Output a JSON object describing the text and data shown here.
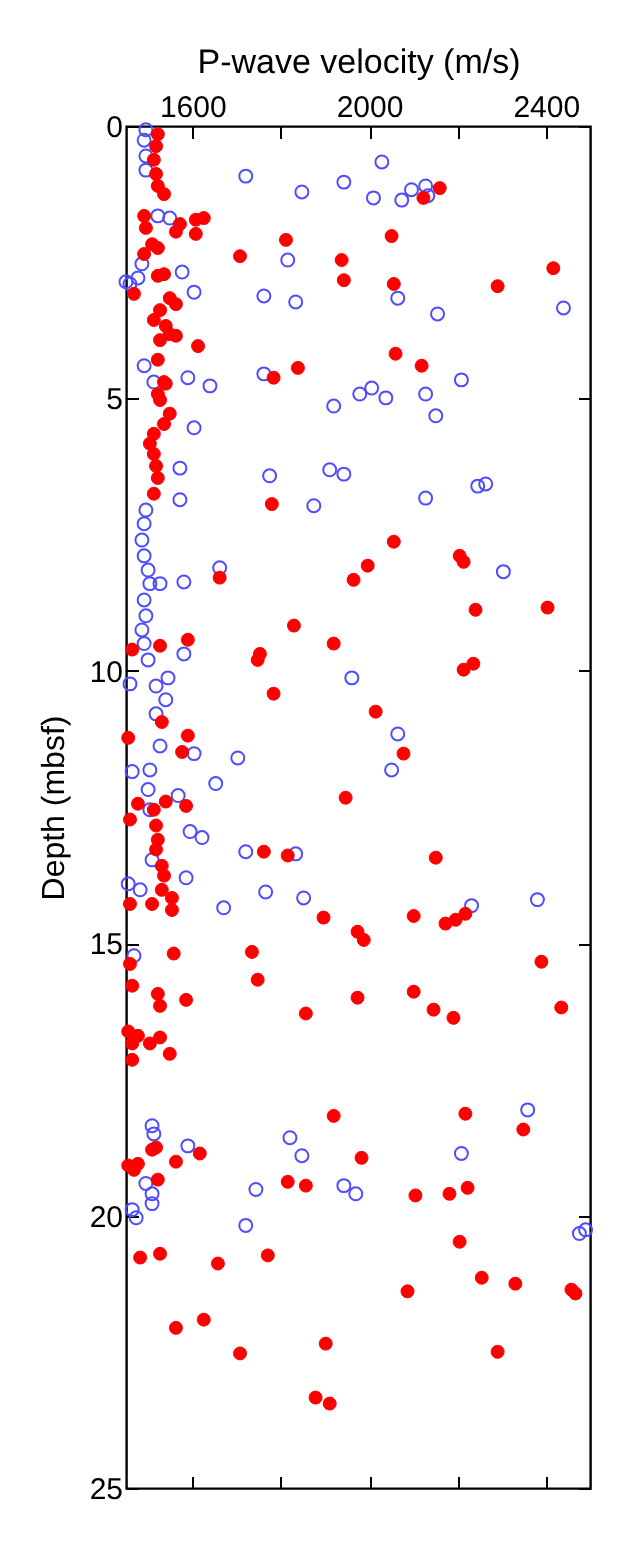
{
  "chart_data": {
    "type": "scatter",
    "xlabel": "P-wave velocity (m/s)",
    "ylabel": "Depth (mbsf)",
    "xlim": [
      1450,
      2500
    ],
    "xticks": [
      1600,
      {
        "value": 1800,
        "label": null
      },
      2000,
      {
        "value": 2200,
        "label": null
      },
      2400
    ],
    "ylim": [
      25,
      0
    ],
    "yticks": [
      0,
      5,
      10,
      15,
      20,
      25
    ],
    "marker": "circle",
    "series": [
      {
        "color": "#4d4dff",
        "x": [
          1495,
          1491,
          1495,
          1495,
          1522,
          1549,
          1486,
          1450,
          1459,
          1477,
          1577,
          1604,
          1491,
          1513,
          1590,
          1640,
          1721,
          1848,
          1943,
          2029,
          2010,
          2074,
          2096,
          2128,
          2133,
          1816,
          1762,
          1834,
          2065,
          2155,
          2440,
          2209,
          1762,
          2006,
          1979,
          2038,
          2128,
          1920,
          2151,
          1604,
          1572,
          1775,
          1911,
          1943,
          2246,
          2264,
          2128,
          1572,
          1875,
          1495,
          1491,
          1486,
          1491,
          1500,
          1504,
          1491,
          1495,
          1486,
          1491,
          1500,
          1662,
          1581,
          1527,
          2304,
          1581,
          1961,
          1545,
          1518,
          1459,
          1540,
          1518,
          2065,
          1604,
          1703,
          1527,
          2051,
          1653,
          1464,
          1504,
          1500,
          1504,
          1568,
          1595,
          1622,
          1721,
          1834,
          1509,
          1586,
          1455,
          1482,
          1766,
          1852,
          1671,
          2232,
          2381,
          1468,
          2359,
          1509,
          1821,
          1513,
          1590,
          1848,
          2209,
          1744,
          1943,
          1970,
          1495,
          1509,
          1509,
          1464,
          1473,
          1721,
          2476,
          2490
        ],
        "values": [
          0.07,
          0.26,
          0.55,
          0.81,
          1.65,
          1.69,
          2.53,
          2.86,
          2.9,
          2.79,
          2.68,
          3.05,
          4.4,
          4.7,
          4.62,
          4.77,
          0.92,
          1.21,
          1.03,
          0.66,
          1.32,
          1.36,
          1.17,
          1.1,
          1.28,
          2.46,
          3.12,
          3.23,
          3.16,
          3.45,
          3.34,
          4.66,
          4.55,
          4.81,
          4.92,
          4.99,
          4.92,
          5.14,
          5.32,
          5.54,
          6.28,
          6.42,
          6.31,
          6.39,
          6.61,
          6.57,
          6.83,
          6.86,
          6.97,
          7.05,
          7.3,
          7.6,
          7.89,
          8.15,
          8.4,
          8.7,
          8.99,
          9.25,
          9.5,
          9.8,
          8.11,
          8.37,
          8.4,
          8.18,
          9.69,
          10.13,
          10.13,
          10.28,
          10.24,
          10.53,
          10.79,
          11.16,
          11.52,
          11.6,
          11.38,
          11.82,
          12.07,
          11.85,
          11.82,
          12.18,
          12.55,
          12.29,
          12.95,
          13.06,
          13.32,
          13.36,
          13.47,
          13.8,
          13.91,
          14.02,
          14.06,
          14.17,
          14.35,
          14.31,
          14.2,
          15.23,
          18.06,
          18.35,
          18.57,
          18.5,
          18.72,
          18.9,
          18.86,
          19.52,
          19.45,
          19.6,
          19.41,
          19.6,
          19.78,
          19.89,
          20.04,
          20.18,
          20.33,
          20.26
        ]
      },
      {
        "color": "#ff0000",
        "x": [
          1522,
          1518,
          1513,
          1518,
          1522,
          1536,
          1491,
          1495,
          1572,
          1608,
          1626,
          1608,
          1563,
          1509,
          1491,
          1522,
          1536,
          1522,
          1468,
          1549,
          1563,
          1527,
          1513,
          1540,
          1549,
          1563,
          1527,
          1613,
          1522,
          1536,
          1522,
          2160,
          2123,
          1812,
          2051,
          1708,
          1938,
          1943,
          2056,
          2291,
          2417,
          2060,
          2119,
          1839,
          1784,
          1540,
          1527,
          1549,
          1536,
          1513,
          1504,
          1513,
          1518,
          1522,
          1513,
          1780,
          2056,
          2205,
          2214,
          1997,
          1965,
          1662,
          2241,
          2404,
          1830,
          1920,
          1753,
          1748,
          1590,
          1527,
          1464,
          2214,
          2236,
          1784,
          2015,
          1531,
          1590,
          1455,
          1577,
          2078,
          1947,
          1477,
          1540,
          1586,
          1459,
          1513,
          1518,
          1522,
          1518,
          1531,
          1536,
          1531,
          1554,
          1509,
          1554,
          1459,
          1762,
          1816,
          2151,
          1897,
          1974,
          1988,
          2101,
          2173,
          2196,
          2218,
          1558,
          1459,
          1735,
          1464,
          1748,
          2390,
          1522,
          1527,
          1586,
          1974,
          2101,
          2146,
          2191,
          2435,
          1857,
          1455,
          1477,
          1527,
          1504,
          1549,
          1464,
          1464,
          1920,
          2218,
          2349,
          1509,
          1518,
          1455,
          1468,
          1477,
          1563,
          1617,
          1522,
          1983,
          1816,
          1857,
          2105,
          2182,
          2223,
          2205,
          1482,
          1527,
          1658,
          1771,
          2087,
          2255,
          2331,
          2458,
          2467,
          1563,
          1626,
          1708,
          1902,
          2291,
          1879,
          1911
        ],
        "values": [
          0.15,
          0.37,
          0.62,
          0.88,
          1.1,
          1.25,
          1.65,
          1.87,
          1.8,
          1.72,
          1.69,
          1.98,
          1.94,
          2.17,
          2.35,
          2.24,
          2.72,
          2.75,
          3.08,
          3.16,
          3.27,
          3.38,
          3.56,
          3.67,
          3.82,
          3.85,
          3.93,
          4.04,
          4.29,
          4.7,
          4.92,
          1.14,
          1.32,
          2.09,
          2.02,
          2.39,
          2.46,
          2.83,
          2.9,
          2.94,
          2.61,
          4.18,
          4.4,
          4.44,
          4.62,
          4.73,
          5.03,
          5.28,
          5.47,
          5.65,
          5.83,
          6.02,
          6.24,
          6.46,
          6.75,
          6.94,
          7.63,
          7.89,
          8.0,
          8.07,
          8.33,
          8.29,
          8.88,
          8.84,
          9.17,
          9.5,
          9.69,
          9.8,
          9.43,
          9.54,
          9.61,
          9.98,
          9.87,
          10.42,
          10.75,
          10.94,
          11.19,
          11.23,
          11.49,
          11.52,
          12.33,
          12.44,
          12.4,
          12.48,
          12.73,
          12.55,
          12.84,
          13.1,
          13.28,
          13.58,
          13.76,
          14.02,
          14.17,
          14.28,
          14.39,
          14.28,
          13.32,
          13.39,
          13.43,
          14.53,
          14.79,
          14.94,
          14.5,
          14.64,
          14.57,
          14.46,
          15.19,
          15.38,
          15.16,
          15.78,
          15.67,
          15.34,
          15.93,
          16.15,
          16.04,
          16.0,
          15.89,
          16.22,
          16.37,
          16.18,
          16.29,
          16.62,
          16.7,
          16.73,
          16.84,
          17.03,
          16.84,
          17.14,
          18.17,
          18.13,
          18.42,
          18.79,
          18.75,
          19.08,
          19.16,
          19.05,
          19.01,
          18.86,
          19.34,
          18.94,
          19.38,
          19.45,
          19.63,
          19.6,
          19.49,
          20.48,
          20.77,
          20.7,
          20.88,
          20.73,
          21.39,
          21.14,
          21.25,
          21.36,
          21.43,
          22.06,
          21.91,
          22.53,
          22.35,
          22.5,
          23.34,
          23.45
        ]
      }
    ]
  }
}
